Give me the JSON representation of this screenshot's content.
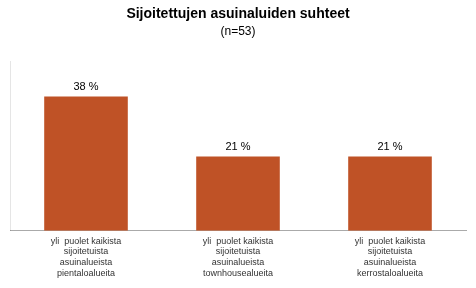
{
  "chart_data": {
    "type": "bar",
    "title": "Sijoitettujen asuinaluiden suhteet",
    "subtitle": "(n=53)",
    "categories": [
      "yli  puolet kaikista sijoitetuista\nasuinalueista pientaloalueita",
      "yli  puolet kaikista sijoitetuista\nasuinalueista townhousealueita",
      "yli  puolet kaikista sijoitetuista\nasuinalueista kerrostaloalueita"
    ],
    "values": [
      38,
      21,
      21
    ],
    "value_labels": [
      "38 %",
      "21 %",
      "21 %"
    ],
    "data_labels": true,
    "color": "#bf5226",
    "ylim": [
      0,
      48
    ],
    "grid": false,
    "tick_labels": "x"
  }
}
